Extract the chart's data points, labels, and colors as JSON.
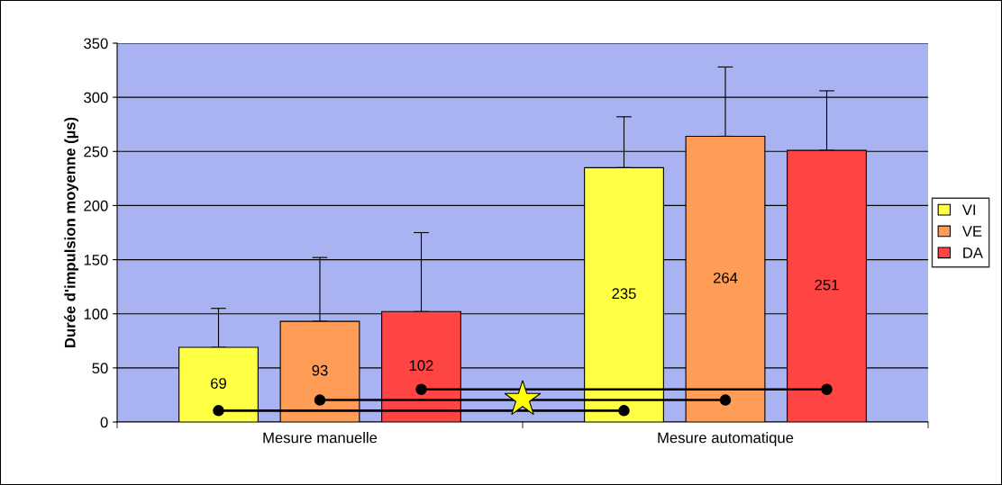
{
  "chart_data": {
    "type": "bar",
    "ylabel": "Durée d'impulsion moyenne (µs)",
    "categories": [
      "Mesure manuelle",
      "Mesure automatique"
    ],
    "series": [
      {
        "name": "VI",
        "color": "#ffff44",
        "values": [
          69,
          235
        ],
        "errors": [
          [
            69,
            105
          ],
          [
            235,
            282
          ]
        ]
      },
      {
        "name": "VE",
        "color": "#ff9c55",
        "values": [
          93,
          264
        ],
        "errors": [
          [
            93,
            152
          ],
          [
            264,
            328
          ]
        ]
      },
      {
        "name": "DA",
        "color": "#ff4444",
        "values": [
          102,
          251
        ],
        "errors": [
          [
            102,
            175
          ],
          [
            251,
            306
          ]
        ]
      }
    ],
    "ylim": [
      0,
      350
    ],
    "yticks": [
      0,
      50,
      100,
      150,
      200,
      250,
      300,
      350
    ],
    "grid": "y",
    "legend": "right",
    "data_labels": true
  }
}
